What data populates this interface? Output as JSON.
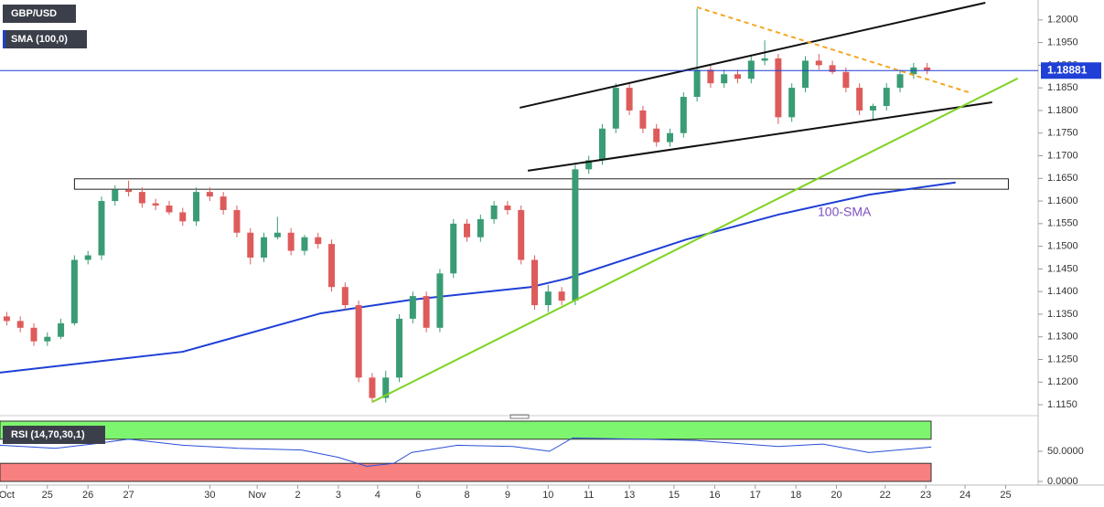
{
  "chart_data": {
    "type": "candlestick",
    "title": "GBP/USD",
    "up_color": "#3a9c74",
    "down_color": "#de5b5b",
    "open": [
      1.1345,
      1.1335,
      1.132,
      1.129,
      1.13,
      1.133,
      1.147,
      1.148,
      1.16,
      1.1625,
      1.162,
      1.1595,
      1.159,
      1.1575,
      1.1555,
      1.162,
      1.161,
      1.158,
      1.153,
      1.1475,
      1.152,
      1.153,
      1.149,
      1.152,
      1.1505,
      1.141,
      1.137,
      1.121,
      1.1165,
      1.121,
      1.134,
      1.139,
      1.132,
      1.144,
      1.155,
      1.152,
      1.156,
      1.159,
      1.158,
      1.147,
      1.137,
      1.14,
      1.138,
      1.167,
      1.169,
      1.176,
      1.185,
      1.18,
      1.176,
      1.173,
      1.175,
      1.183,
      1.189,
      1.186,
      1.188,
      1.187,
      1.191,
      1.1915,
      1.1785,
      1.185,
      1.191,
      1.19,
      1.1885,
      1.185,
      1.18,
      1.181,
      1.185,
      1.188,
      1.1895
    ],
    "high": [
      1.1355,
      1.1345,
      1.133,
      1.131,
      1.134,
      1.148,
      1.149,
      1.161,
      1.1635,
      1.1645,
      1.163,
      1.1605,
      1.16,
      1.1585,
      1.163,
      1.163,
      1.162,
      1.159,
      1.154,
      1.153,
      1.1565,
      1.154,
      1.1525,
      1.153,
      1.1515,
      1.142,
      1.138,
      1.122,
      1.1225,
      1.135,
      1.14,
      1.14,
      1.145,
      1.156,
      1.156,
      1.157,
      1.16,
      1.16,
      1.159,
      1.148,
      1.1415,
      1.141,
      1.168,
      1.17,
      1.177,
      1.186,
      1.186,
      1.181,
      1.177,
      1.176,
      1.184,
      1.2025,
      1.19,
      1.189,
      1.189,
      1.192,
      1.1955,
      1.1925,
      1.186,
      1.192,
      1.1925,
      1.191,
      1.1895,
      1.186,
      1.1815,
      1.186,
      1.189,
      1.1905,
      1.1905
    ],
    "low": [
      1.1325,
      1.131,
      1.128,
      1.128,
      1.1295,
      1.1325,
      1.146,
      1.147,
      1.159,
      1.161,
      1.1585,
      1.158,
      1.157,
      1.1545,
      1.1545,
      1.16,
      1.157,
      1.152,
      1.146,
      1.1465,
      1.1515,
      1.148,
      1.148,
      1.1495,
      1.14,
      1.136,
      1.12,
      1.1155,
      1.1155,
      1.12,
      1.133,
      1.131,
      1.131,
      1.143,
      1.151,
      1.151,
      1.155,
      1.157,
      1.146,
      1.136,
      1.1355,
      1.137,
      1.137,
      1.166,
      1.168,
      1.175,
      1.179,
      1.175,
      1.172,
      1.172,
      1.174,
      1.182,
      1.185,
      1.185,
      1.186,
      1.186,
      1.19,
      1.177,
      1.1775,
      1.184,
      1.189,
      1.188,
      1.184,
      1.179,
      1.178,
      1.18,
      1.184,
      1.187,
      1.188
    ],
    "close": [
      1.1335,
      1.132,
      1.129,
      1.13,
      1.133,
      1.147,
      1.148,
      1.16,
      1.1625,
      1.162,
      1.1595,
      1.159,
      1.1575,
      1.1555,
      1.162,
      1.161,
      1.158,
      1.153,
      1.1475,
      1.152,
      1.153,
      1.149,
      1.152,
      1.1505,
      1.141,
      1.137,
      1.121,
      1.1165,
      1.121,
      1.134,
      1.139,
      1.132,
      1.144,
      1.155,
      1.152,
      1.156,
      1.159,
      1.158,
      1.147,
      1.137,
      1.14,
      1.138,
      1.167,
      1.169,
      1.176,
      1.185,
      1.18,
      1.176,
      1.173,
      1.175,
      1.183,
      1.189,
      1.186,
      1.188,
      1.187,
      1.191,
      1.1915,
      1.1785,
      1.185,
      1.191,
      1.19,
      1.1885,
      1.185,
      1.18,
      1.181,
      1.185,
      1.188,
      1.1895,
      1.1888
    ],
    "sma": {
      "name": "SMA (100,0)",
      "label": "100-SMA",
      "color": "#1f3fd6",
      "x": [
        -0.5,
        13,
        23.2,
        29.9,
        38.7,
        41.4,
        50.2,
        57,
        63.7,
        70.1
      ],
      "values": [
        1.1221,
        1.1267,
        1.1352,
        1.1382,
        1.141,
        1.1429,
        1.1515,
        1.157,
        1.1614,
        1.1641
      ]
    },
    "last_price": {
      "value": 1.18881,
      "label": "1.18881"
    },
    "zone": [
      1.1626,
      1.1649
    ],
    "zone_x": [
      5,
      74
    ],
    "trend_lines": [
      {
        "color": "#111111",
        "x": [
          37.9,
          72.3
        ],
        "values": [
          1.1806,
          1.2038
        ]
      },
      {
        "color": "#111111",
        "x": [
          38.5,
          72.8
        ],
        "values": [
          1.1667,
          1.1818
        ]
      },
      {
        "color": "#7ed321",
        "x": [
          27,
          74.7
        ],
        "values": [
          1.1156,
          1.1871
        ]
      },
      {
        "color": "#f5a623",
        "dashed": true,
        "x": [
          51,
          71.3
        ],
        "values": [
          1.2028,
          1.1838
        ]
      }
    ],
    "xlim": [
      -0.5,
      76.2
    ],
    "ylim": [
      1.1136,
      1.2044
    ],
    "yticks": [
      {
        "value": 1.115,
        "label": "1.1150"
      },
      {
        "value": 1.12,
        "label": "1.1200"
      },
      {
        "value": 1.125,
        "label": "1.1250"
      },
      {
        "value": 1.13,
        "label": "1.1300"
      },
      {
        "value": 1.135,
        "label": "1.1350"
      },
      {
        "value": 1.14,
        "label": "1.1400"
      },
      {
        "value": 1.145,
        "label": "1.1450"
      },
      {
        "value": 1.15,
        "label": "1.1500"
      },
      {
        "value": 1.155,
        "label": "1.1550"
      },
      {
        "value": 1.16,
        "label": "1.1600"
      },
      {
        "value": 1.165,
        "label": "1.1650"
      },
      {
        "value": 1.17,
        "label": "1.1700"
      },
      {
        "value": 1.175,
        "label": "1.1750"
      },
      {
        "value": 1.18,
        "label": "1.1800"
      },
      {
        "value": 1.185,
        "label": "1.1850"
      },
      {
        "value": 1.19,
        "label": "1.1900"
      },
      {
        "value": 1.195,
        "label": "1.1950"
      },
      {
        "value": 1.2,
        "label": "1.2000"
      }
    ],
    "xticks": [
      {
        "value": 0,
        "label": "Oct"
      },
      {
        "value": 3,
        "label": "25"
      },
      {
        "value": 6,
        "label": "26"
      },
      {
        "value": 9,
        "label": "27"
      },
      {
        "value": 15,
        "label": "30"
      },
      {
        "value": 18.5,
        "label": "Nov"
      },
      {
        "value": 21.5,
        "label": "2"
      },
      {
        "value": 24.5,
        "label": "3"
      },
      {
        "value": 27.4,
        "label": "4"
      },
      {
        "value": 30.4,
        "label": "6"
      },
      {
        "value": 34,
        "label": "8"
      },
      {
        "value": 37,
        "label": "9"
      },
      {
        "value": 40,
        "label": "10"
      },
      {
        "value": 43,
        "label": "11"
      },
      {
        "value": 46,
        "label": "13"
      },
      {
        "value": 49.3,
        "label": "15"
      },
      {
        "value": 52.3,
        "label": "16"
      },
      {
        "value": 55.3,
        "label": "17"
      },
      {
        "value": 58.3,
        "label": "18"
      },
      {
        "value": 61.3,
        "label": "20"
      },
      {
        "value": 64.9,
        "label": "22"
      },
      {
        "value": 67.9,
        "label": "23"
      },
      {
        "value": 70.8,
        "label": "24"
      },
      {
        "value": 73.8,
        "label": "25"
      }
    ],
    "rsi": {
      "name": "RSI (14,70,30,1)",
      "color": "#2a4fd8",
      "x": [
        -0.5,
        3.6,
        6.3,
        9,
        13,
        17.1,
        21.8,
        24.5,
        26.6,
        28.6,
        29.9,
        33.3,
        37.4,
        40.1,
        41.8,
        46.8,
        50.9,
        57,
        60.3,
        63.7,
        68.3
      ],
      "values": [
        60,
        55,
        62,
        70,
        60,
        55,
        52,
        40,
        25,
        30,
        48,
        60,
        58,
        50,
        72,
        70,
        68,
        58,
        62,
        48,
        57
      ],
      "ylim": [
        0,
        100
      ],
      "overbought": 70,
      "oversold": 30,
      "yticks": [
        {
          "value": 50,
          "label": "50.0000"
        },
        {
          "value": 0,
          "label": "0.0000"
        }
      ]
    }
  }
}
